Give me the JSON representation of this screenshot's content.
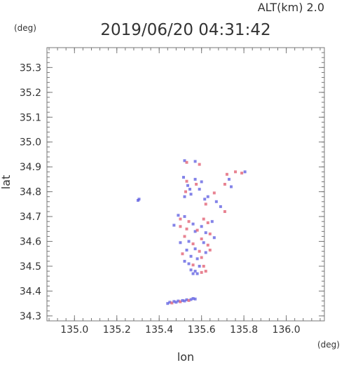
{
  "chart_data": {
    "type": "scatter",
    "alt_label": "ALT(km) 2.0",
    "title": "2019/06/20 04:31:42",
    "xlabel": "lon",
    "ylabel": "lat",
    "x_unit": "(deg)",
    "y_unit": "(deg)",
    "xlim": [
      134.87,
      136.18
    ],
    "ylim": [
      34.28,
      35.38
    ],
    "x_ticks": [
      "135.0",
      "135.2",
      "135.4",
      "135.6",
      "135.8",
      "136.0"
    ],
    "y_ticks": [
      "34.3",
      "34.4",
      "34.5",
      "34.6",
      "34.7",
      "34.8",
      "34.9",
      "35.0",
      "35.1",
      "35.2",
      "35.3"
    ],
    "grid": false,
    "colors": {
      "positive": "#e05a6e",
      "negative": "#5a5ae0",
      "axis": "#777777"
    },
    "series": [
      {
        "values": [
          {
            "x": 135.52,
            "y": 34.925,
            "v": -1
          },
          {
            "x": 135.53,
            "y": 34.918,
            "v": 1
          },
          {
            "x": 135.57,
            "y": 34.922,
            "v": -1
          },
          {
            "x": 135.59,
            "y": 34.91,
            "v": 1
          },
          {
            "x": 135.515,
            "y": 34.858,
            "v": -1
          },
          {
            "x": 135.53,
            "y": 34.842,
            "v": 1
          },
          {
            "x": 135.535,
            "y": 34.825,
            "v": -1
          },
          {
            "x": 135.545,
            "y": 34.81,
            "v": -1
          },
          {
            "x": 135.525,
            "y": 34.8,
            "v": 1
          },
          {
            "x": 135.55,
            "y": 34.79,
            "v": -1
          },
          {
            "x": 135.52,
            "y": 34.78,
            "v": -1
          },
          {
            "x": 135.57,
            "y": 34.85,
            "v": -1
          },
          {
            "x": 135.575,
            "y": 34.83,
            "v": 1
          },
          {
            "x": 135.59,
            "y": 34.81,
            "v": -1
          },
          {
            "x": 135.6,
            "y": 34.84,
            "v": -1
          },
          {
            "x": 135.615,
            "y": 34.77,
            "v": -1
          },
          {
            "x": 135.62,
            "y": 34.75,
            "v": 1
          },
          {
            "x": 135.63,
            "y": 34.78,
            "v": -1
          },
          {
            "x": 135.66,
            "y": 34.795,
            "v": 1
          },
          {
            "x": 135.67,
            "y": 34.76,
            "v": -1
          },
          {
            "x": 135.72,
            "y": 34.87,
            "v": 1
          },
          {
            "x": 135.73,
            "y": 34.85,
            "v": -1
          },
          {
            "x": 135.71,
            "y": 34.83,
            "v": 1
          },
          {
            "x": 135.74,
            "y": 34.82,
            "v": -1
          },
          {
            "x": 135.76,
            "y": 34.88,
            "v": 1
          },
          {
            "x": 135.79,
            "y": 34.875,
            "v": 1
          },
          {
            "x": 135.805,
            "y": 34.88,
            "v": -1
          },
          {
            "x": 135.69,
            "y": 34.74,
            "v": -1
          },
          {
            "x": 135.71,
            "y": 34.72,
            "v": 1
          },
          {
            "x": 135.3,
            "y": 34.765,
            "v": -1
          },
          {
            "x": 135.305,
            "y": 34.77,
            "v": -1
          },
          {
            "x": 135.49,
            "y": 34.705,
            "v": -1
          },
          {
            "x": 135.5,
            "y": 34.69,
            "v": 1
          },
          {
            "x": 135.52,
            "y": 34.7,
            "v": -1
          },
          {
            "x": 135.54,
            "y": 34.68,
            "v": 1
          },
          {
            "x": 135.56,
            "y": 34.67,
            "v": -1
          },
          {
            "x": 135.47,
            "y": 34.665,
            "v": -1
          },
          {
            "x": 135.5,
            "y": 34.66,
            "v": 1
          },
          {
            "x": 135.53,
            "y": 34.65,
            "v": 1
          },
          {
            "x": 135.57,
            "y": 34.64,
            "v": -1
          },
          {
            "x": 135.61,
            "y": 34.69,
            "v": 1
          },
          {
            "x": 135.63,
            "y": 34.675,
            "v": 1
          },
          {
            "x": 135.65,
            "y": 34.68,
            "v": -1
          },
          {
            "x": 135.6,
            "y": 34.66,
            "v": -1
          },
          {
            "x": 135.58,
            "y": 34.645,
            "v": 1
          },
          {
            "x": 135.62,
            "y": 34.635,
            "v": -1
          },
          {
            "x": 135.64,
            "y": 34.63,
            "v": 1
          },
          {
            "x": 135.66,
            "y": 34.615,
            "v": -1
          },
          {
            "x": 135.52,
            "y": 34.62,
            "v": 1
          },
          {
            "x": 135.54,
            "y": 34.6,
            "v": -1
          },
          {
            "x": 135.56,
            "y": 34.59,
            "v": 1
          },
          {
            "x": 135.5,
            "y": 34.595,
            "v": -1
          },
          {
            "x": 135.6,
            "y": 34.61,
            "v": 1
          },
          {
            "x": 135.61,
            "y": 34.595,
            "v": -1
          },
          {
            "x": 135.63,
            "y": 34.585,
            "v": 1
          },
          {
            "x": 135.57,
            "y": 34.57,
            "v": -1
          },
          {
            "x": 135.59,
            "y": 34.56,
            "v": 1
          },
          {
            "x": 135.62,
            "y": 34.555,
            "v": -1
          },
          {
            "x": 135.64,
            "y": 34.565,
            "v": 1
          },
          {
            "x": 135.53,
            "y": 34.565,
            "v": -1
          },
          {
            "x": 135.51,
            "y": 34.55,
            "v": 1
          },
          {
            "x": 135.55,
            "y": 34.54,
            "v": -1
          },
          {
            "x": 135.58,
            "y": 34.53,
            "v": -1
          },
          {
            "x": 135.6,
            "y": 34.535,
            "v": 1
          },
          {
            "x": 135.52,
            "y": 34.52,
            "v": -1
          },
          {
            "x": 135.54,
            "y": 34.51,
            "v": -1
          },
          {
            "x": 135.56,
            "y": 34.505,
            "v": 1
          },
          {
            "x": 135.59,
            "y": 34.5,
            "v": -1
          },
          {
            "x": 135.61,
            "y": 34.5,
            "v": 1
          },
          {
            "x": 135.55,
            "y": 34.485,
            "v": -1
          },
          {
            "x": 135.57,
            "y": 34.48,
            "v": -1
          },
          {
            "x": 135.6,
            "y": 34.475,
            "v": 1
          },
          {
            "x": 135.62,
            "y": 34.48,
            "v": 1
          },
          {
            "x": 135.56,
            "y": 34.47,
            "v": -1
          },
          {
            "x": 135.58,
            "y": 34.47,
            "v": -1
          },
          {
            "x": 135.44,
            "y": 34.35,
            "v": -1
          },
          {
            "x": 135.45,
            "y": 34.355,
            "v": -1
          },
          {
            "x": 135.46,
            "y": 34.352,
            "v": 1
          },
          {
            "x": 135.47,
            "y": 34.358,
            "v": -1
          },
          {
            "x": 135.48,
            "y": 34.355,
            "v": -1
          },
          {
            "x": 135.49,
            "y": 34.36,
            "v": -1
          },
          {
            "x": 135.5,
            "y": 34.357,
            "v": 1
          },
          {
            "x": 135.51,
            "y": 34.362,
            "v": -1
          },
          {
            "x": 135.52,
            "y": 34.36,
            "v": -1
          },
          {
            "x": 135.53,
            "y": 34.365,
            "v": -1
          },
          {
            "x": 135.54,
            "y": 34.362,
            "v": 1
          },
          {
            "x": 135.55,
            "y": 34.366,
            "v": -1
          },
          {
            "x": 135.56,
            "y": 34.37,
            "v": -1
          },
          {
            "x": 135.57,
            "y": 34.368,
            "v": -1
          }
        ]
      }
    ]
  }
}
